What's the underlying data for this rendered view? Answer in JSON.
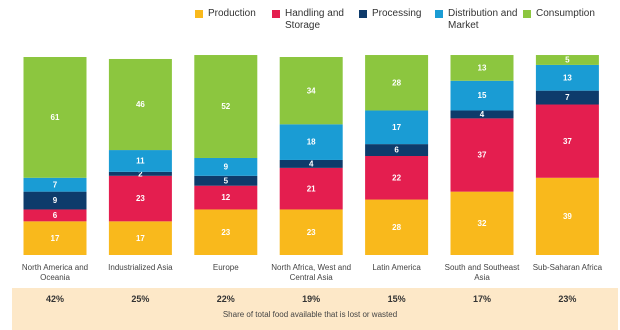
{
  "chart_data": {
    "type": "stacked_bar",
    "categories": [
      "North America and Oceania",
      "Industrialized Asia",
      "Europe",
      "North Africa, West and Central Asia",
      "Latin America",
      "South and Southeast Asia",
      "Sub-Saharan Africa"
    ],
    "series": [
      {
        "name": "Production",
        "color": "#f9b91c",
        "values": [
          17,
          17,
          23,
          23,
          28,
          32,
          39
        ]
      },
      {
        "name": "Handling and Storage",
        "color": "#e41e4f",
        "values": [
          6,
          23,
          12,
          21,
          22,
          37,
          37
        ]
      },
      {
        "name": "Processing",
        "color": "#0e3b6b",
        "values": [
          9,
          2,
          5,
          4,
          6,
          4,
          7
        ]
      },
      {
        "name": "Distribution and Market",
        "color": "#1a9cd4",
        "values": [
          7,
          11,
          9,
          18,
          17,
          15,
          13
        ]
      },
      {
        "name": "Consumption",
        "color": "#8cc63f",
        "values": [
          61,
          46,
          52,
          34,
          28,
          13,
          5
        ]
      }
    ],
    "ylim": [
      0,
      100
    ],
    "shares": [
      "42%",
      "25%",
      "22%",
      "19%",
      "15%",
      "17%",
      "23%"
    ],
    "shares_caption": "Share of total food available that is lost or wasted"
  }
}
